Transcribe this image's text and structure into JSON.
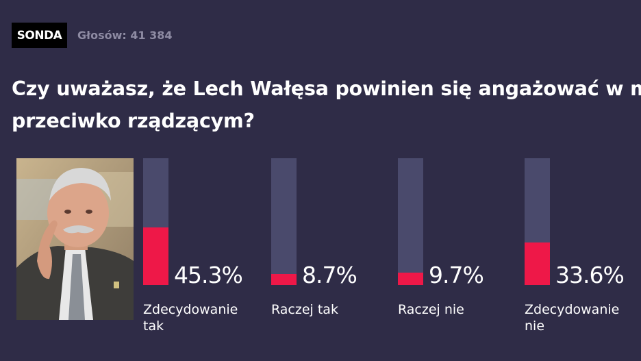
{
  "header": {
    "badge": "SONDA",
    "votes": "Głosów: 41 384"
  },
  "question": {
    "line1": "Czy uważasz, że Lech Wałęsa powinien się angażować w ma",
    "line2": "przeciwko rządzącym?"
  },
  "colors": {
    "background": "#2f2c47",
    "bar_track": "#4a4a6c",
    "bar_fill": "#ee1848",
    "muted_text": "#8e8ba3"
  },
  "chart_data": {
    "type": "bar",
    "categories": [
      "Zdecydowanie tak",
      "Raczej tak",
      "Raczej nie",
      "Zdecydowanie nie"
    ],
    "values": [
      45.3,
      8.7,
      9.7,
      33.6
    ],
    "value_labels": [
      "45.3%",
      "8.7%",
      "9.7%",
      "33.6%"
    ],
    "ylim": [
      0,
      100
    ],
    "grid": false,
    "legend": "none"
  }
}
